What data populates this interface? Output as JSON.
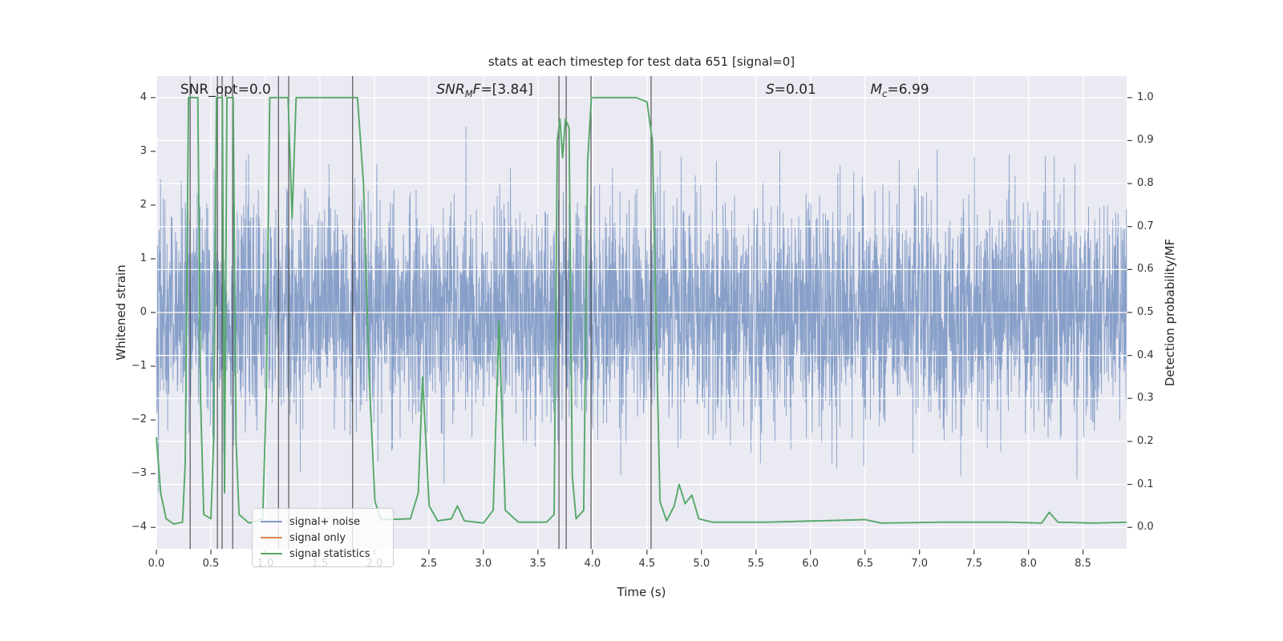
{
  "figure": {
    "background": "#ffffff",
    "axes_background": "#eaeaf2",
    "grid_color": "#ffffff",
    "tick_color": "#444444",
    "text_color": "#262626"
  },
  "chart_data": {
    "type": "line",
    "title": "stats at each timestep for test data 651 [signal=0]",
    "xlabel": "Time (s)",
    "ylabel_left": "Whitened strain",
    "ylabel_right": "Detection probability/MF",
    "xlim": [
      0,
      8.9
    ],
    "ylim_left": [
      -4.4,
      4.4
    ],
    "ylim_right": [
      -0.05,
      1.05
    ],
    "grid": {
      "vertical_from": "x_ticks",
      "horizontal_from": "y_ticks_right"
    },
    "x_ticks": {
      "values": [
        0,
        0.5,
        1,
        1.5,
        2,
        2.5,
        3,
        3.5,
        4,
        4.5,
        5,
        5.5,
        6,
        6.5,
        7,
        7.5,
        8,
        8.5
      ],
      "labels": [
        "0.0",
        "0.5",
        "1.0",
        "1.5",
        "2.0",
        "2.5",
        "3.0",
        "3.5",
        "4.0",
        "4.5",
        "5.0",
        "5.5",
        "6.0",
        "6.5",
        "7.0",
        "7.5",
        "8.0",
        "8.5"
      ]
    },
    "y_ticks_left": {
      "values": [
        4,
        3,
        2,
        1,
        0,
        -1,
        -2,
        -3,
        -4
      ],
      "labels": [
        "4",
        "3",
        "2",
        "1",
        "0",
        "−1",
        "−2",
        "−3",
        "−4"
      ]
    },
    "y_ticks_right": {
      "values": [
        1,
        0.9,
        0.8,
        0.7,
        0.6,
        0.5,
        0.4,
        0.3,
        0.2,
        0.1,
        0
      ],
      "labels": [
        "1.0",
        "0.9",
        "0.8",
        "0.7",
        "0.6",
        "0.5",
        "0.4",
        "0.3",
        "0.2",
        "0.1",
        "0.0"
      ]
    },
    "annotations": [
      {
        "id": "snr-opt",
        "t": 0.22,
        "parts": [
          {
            "text": "SNR_opt=0.0",
            "style": "plain"
          }
        ]
      },
      {
        "id": "snr-mf",
        "t": 2.57,
        "parts": [
          {
            "text": "SNR",
            "style": "italic"
          },
          {
            "text": "M",
            "style": "sub"
          },
          {
            "text": "F",
            "style": "italic"
          },
          {
            "text": "=[3.84]",
            "style": "plain"
          }
        ]
      },
      {
        "id": "s-value",
        "t": 5.59,
        "parts": [
          {
            "text": "S",
            "style": "italic"
          },
          {
            "text": "=0.01",
            "style": "plain"
          }
        ]
      },
      {
        "id": "chirp-mass",
        "t": 6.55,
        "parts": [
          {
            "text": "M",
            "style": "italic"
          },
          {
            "text": "c",
            "style": "sub"
          },
          {
            "text": "=6.99",
            "style": "plain"
          }
        ]
      }
    ],
    "event_markers": {
      "color": "#3c3c3c",
      "times": [
        0.31,
        0.56,
        0.603,
        0.7,
        1.12,
        1.214,
        1.8,
        3.693,
        3.759,
        3.987,
        4.538
      ]
    },
    "series": [
      {
        "name": "signal+ noise",
        "style": "noise",
        "axis": "left",
        "color": "#4c72b0",
        "opacity": 0.62,
        "line_width": 0.9,
        "noise_model": {
          "distribution": "gaussian",
          "mean": 0,
          "std": 1.02,
          "seed": 42,
          "n_samples": 4200,
          "t_start": 0,
          "t_end": 8.9,
          "clip": 4.1
        }
      },
      {
        "name": "signal only",
        "style": "constant",
        "axis": "left",
        "color": "#dd8452",
        "opacity": 0.95,
        "line_width": 1.3,
        "value": 0
      },
      {
        "name": "signal statistics",
        "style": "line",
        "axis": "right",
        "color": "#55a868",
        "opacity": 1.0,
        "line_width": 1.9,
        "points": [
          [
            0.0,
            0.21
          ],
          [
            0.04,
            0.08
          ],
          [
            0.09,
            0.02
          ],
          [
            0.16,
            0.008
          ],
          [
            0.24,
            0.012
          ],
          [
            0.265,
            0.15
          ],
          [
            0.295,
            1.0
          ],
          [
            0.38,
            1.0
          ],
          [
            0.405,
            0.3
          ],
          [
            0.435,
            0.03
          ],
          [
            0.5,
            0.02
          ],
          [
            0.525,
            0.2
          ],
          [
            0.552,
            1.0
          ],
          [
            0.605,
            1.0
          ],
          [
            0.625,
            0.08
          ],
          [
            0.647,
            1.0
          ],
          [
            0.705,
            1.0
          ],
          [
            0.731,
            0.2
          ],
          [
            0.758,
            0.03
          ],
          [
            0.85,
            0.01
          ],
          [
            0.975,
            0.02
          ],
          [
            1.008,
            0.3
          ],
          [
            1.04,
            1.0
          ],
          [
            1.208,
            1.0
          ],
          [
            1.245,
            0.72
          ],
          [
            1.282,
            1.0
          ],
          [
            1.55,
            1.0
          ],
          [
            1.845,
            1.0
          ],
          [
            1.9,
            0.8
          ],
          [
            1.952,
            0.35
          ],
          [
            2.005,
            0.06
          ],
          [
            2.06,
            0.018
          ],
          [
            2.33,
            0.02
          ],
          [
            2.402,
            0.08
          ],
          [
            2.442,
            0.35
          ],
          [
            2.502,
            0.05
          ],
          [
            2.58,
            0.015
          ],
          [
            2.705,
            0.02
          ],
          [
            2.762,
            0.05
          ],
          [
            2.825,
            0.015
          ],
          [
            3.0,
            0.01
          ],
          [
            3.09,
            0.04
          ],
          [
            3.142,
            0.48
          ],
          [
            3.2,
            0.04
          ],
          [
            3.32,
            0.012
          ],
          [
            3.58,
            0.012
          ],
          [
            3.648,
            0.03
          ],
          [
            3.678,
            0.9
          ],
          [
            3.702,
            0.95
          ],
          [
            3.726,
            0.86
          ],
          [
            3.752,
            0.95
          ],
          [
            3.786,
            0.93
          ],
          [
            3.815,
            0.12
          ],
          [
            3.85,
            0.02
          ],
          [
            3.92,
            0.04
          ],
          [
            3.956,
            0.85
          ],
          [
            3.99,
            1.0
          ],
          [
            4.4,
            1.0
          ],
          [
            4.5,
            0.99
          ],
          [
            4.55,
            0.9
          ],
          [
            4.585,
            0.45
          ],
          [
            4.62,
            0.06
          ],
          [
            4.68,
            0.015
          ],
          [
            4.75,
            0.05
          ],
          [
            4.795,
            0.1
          ],
          [
            4.85,
            0.055
          ],
          [
            4.912,
            0.075
          ],
          [
            4.975,
            0.02
          ],
          [
            5.1,
            0.012
          ],
          [
            5.6,
            0.012
          ],
          [
            6.5,
            0.018
          ],
          [
            6.65,
            0.01
          ],
          [
            7.2,
            0.012
          ],
          [
            7.8,
            0.012
          ],
          [
            8.12,
            0.01
          ],
          [
            8.19,
            0.035
          ],
          [
            8.27,
            0.012
          ],
          [
            8.6,
            0.01
          ],
          [
            8.9,
            0.012
          ]
        ]
      }
    ],
    "legend": {
      "position": "lower-left",
      "items": [
        {
          "label": "signal+ noise",
          "color": "#4c72b0",
          "opacity": 0.7
        },
        {
          "label": "signal only",
          "color": "#dd8452",
          "opacity": 1
        },
        {
          "label": "signal statistics",
          "color": "#55a868",
          "opacity": 1
        }
      ]
    }
  }
}
